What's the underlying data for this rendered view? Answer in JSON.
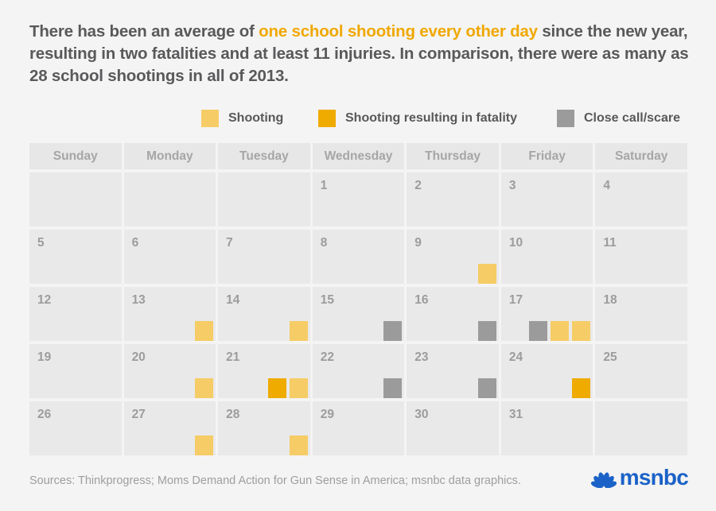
{
  "headline": {
    "text_before": "There has been an average of ",
    "highlight": "one school shooting every other day",
    "text_after": " since the new year, resulting in two fatalities and at least 11 injuries. In comparison, there were as many as 28 school shootings in all of 2013."
  },
  "legend": {
    "items": [
      {
        "key": "shooting",
        "label": "Shooting",
        "color": "#f6cc66"
      },
      {
        "key": "fatality",
        "label": "Shooting resulting in fatality",
        "color": "#efab00"
      },
      {
        "key": "close_call",
        "label": "Close call/scare",
        "color": "#9b9b9b"
      }
    ]
  },
  "calendar": {
    "day_headers": [
      "Sunday",
      "Monday",
      "Tuesday",
      "Wednesday",
      "Thursday",
      "Friday",
      "Saturday"
    ],
    "weeks": [
      [
        {
          "date": ""
        },
        {
          "date": ""
        },
        {
          "date": ""
        },
        {
          "date": "1"
        },
        {
          "date": "2"
        },
        {
          "date": "3"
        },
        {
          "date": "4"
        }
      ],
      [
        {
          "date": "5"
        },
        {
          "date": "6"
        },
        {
          "date": "7"
        },
        {
          "date": "8"
        },
        {
          "date": "9",
          "events": [
            "shooting"
          ]
        },
        {
          "date": "10"
        },
        {
          "date": "11"
        }
      ],
      [
        {
          "date": "12"
        },
        {
          "date": "13",
          "events": [
            "shooting"
          ]
        },
        {
          "date": "14",
          "events": [
            "shooting"
          ]
        },
        {
          "date": "15",
          "events": [
            "close_call"
          ]
        },
        {
          "date": "16",
          "events": [
            "close_call"
          ]
        },
        {
          "date": "17",
          "events": [
            "close_call",
            "shooting",
            "shooting"
          ]
        },
        {
          "date": "18"
        }
      ],
      [
        {
          "date": "19"
        },
        {
          "date": "20",
          "events": [
            "shooting"
          ]
        },
        {
          "date": "21",
          "events": [
            "fatality",
            "shooting"
          ]
        },
        {
          "date": "22",
          "events": [
            "close_call"
          ]
        },
        {
          "date": "23",
          "events": [
            "close_call"
          ]
        },
        {
          "date": "24",
          "events": [
            "fatality"
          ]
        },
        {
          "date": "25"
        }
      ],
      [
        {
          "date": "26"
        },
        {
          "date": "27",
          "events": [
            "shooting"
          ]
        },
        {
          "date": "28",
          "events": [
            "shooting"
          ]
        },
        {
          "date": "29"
        },
        {
          "date": "30"
        },
        {
          "date": "31"
        },
        {
          "date": ""
        }
      ]
    ]
  },
  "chart_data": {
    "type": "heatmap",
    "subtype": "calendar-month",
    "title": "School shootings since the new year",
    "columns": [
      "Sunday",
      "Monday",
      "Tuesday",
      "Wednesday",
      "Thursday",
      "Friday",
      "Saturday"
    ],
    "legend_entries": [
      "Shooting",
      "Shooting resulting in fatality",
      "Close call/scare"
    ],
    "month_layout": {
      "first_day_column": "Wednesday",
      "last_date": 31
    },
    "events": [
      {
        "day": 9,
        "markers": [
          "shooting"
        ]
      },
      {
        "day": 13,
        "markers": [
          "shooting"
        ]
      },
      {
        "day": 14,
        "markers": [
          "shooting"
        ]
      },
      {
        "day": 15,
        "markers": [
          "close_call"
        ]
      },
      {
        "day": 16,
        "markers": [
          "close_call"
        ]
      },
      {
        "day": 17,
        "markers": [
          "close_call",
          "shooting",
          "shooting"
        ]
      },
      {
        "day": 20,
        "markers": [
          "shooting"
        ]
      },
      {
        "day": 21,
        "markers": [
          "fatality",
          "shooting"
        ]
      },
      {
        "day": 22,
        "markers": [
          "close_call"
        ]
      },
      {
        "day": 23,
        "markers": [
          "close_call"
        ]
      },
      {
        "day": 24,
        "markers": [
          "fatality"
        ]
      },
      {
        "day": 27,
        "markers": [
          "shooting"
        ]
      },
      {
        "day": 28,
        "markers": [
          "shooting"
        ]
      }
    ],
    "totals": {
      "shooting_markers": 9,
      "fatality_markers": 2,
      "close_call_markers": 5
    }
  },
  "footer": {
    "sources": "Sources: Thinkprogress; Moms Demand Action for Gun Sense in America; msnbc data graphics.",
    "logo_text": "msnbc"
  },
  "colors": {
    "background": "#f4f4f4",
    "cell": "#e9e9e9",
    "header_cell": "#e7e7e7",
    "headline_text": "#59595b",
    "accent_orange": "#f0a800",
    "shooting": "#f6cc66",
    "fatality": "#efab00",
    "close_call": "#9b9b9b",
    "muted_text": "#9e9e9e",
    "msnbc_blue": "#1b62c8"
  }
}
